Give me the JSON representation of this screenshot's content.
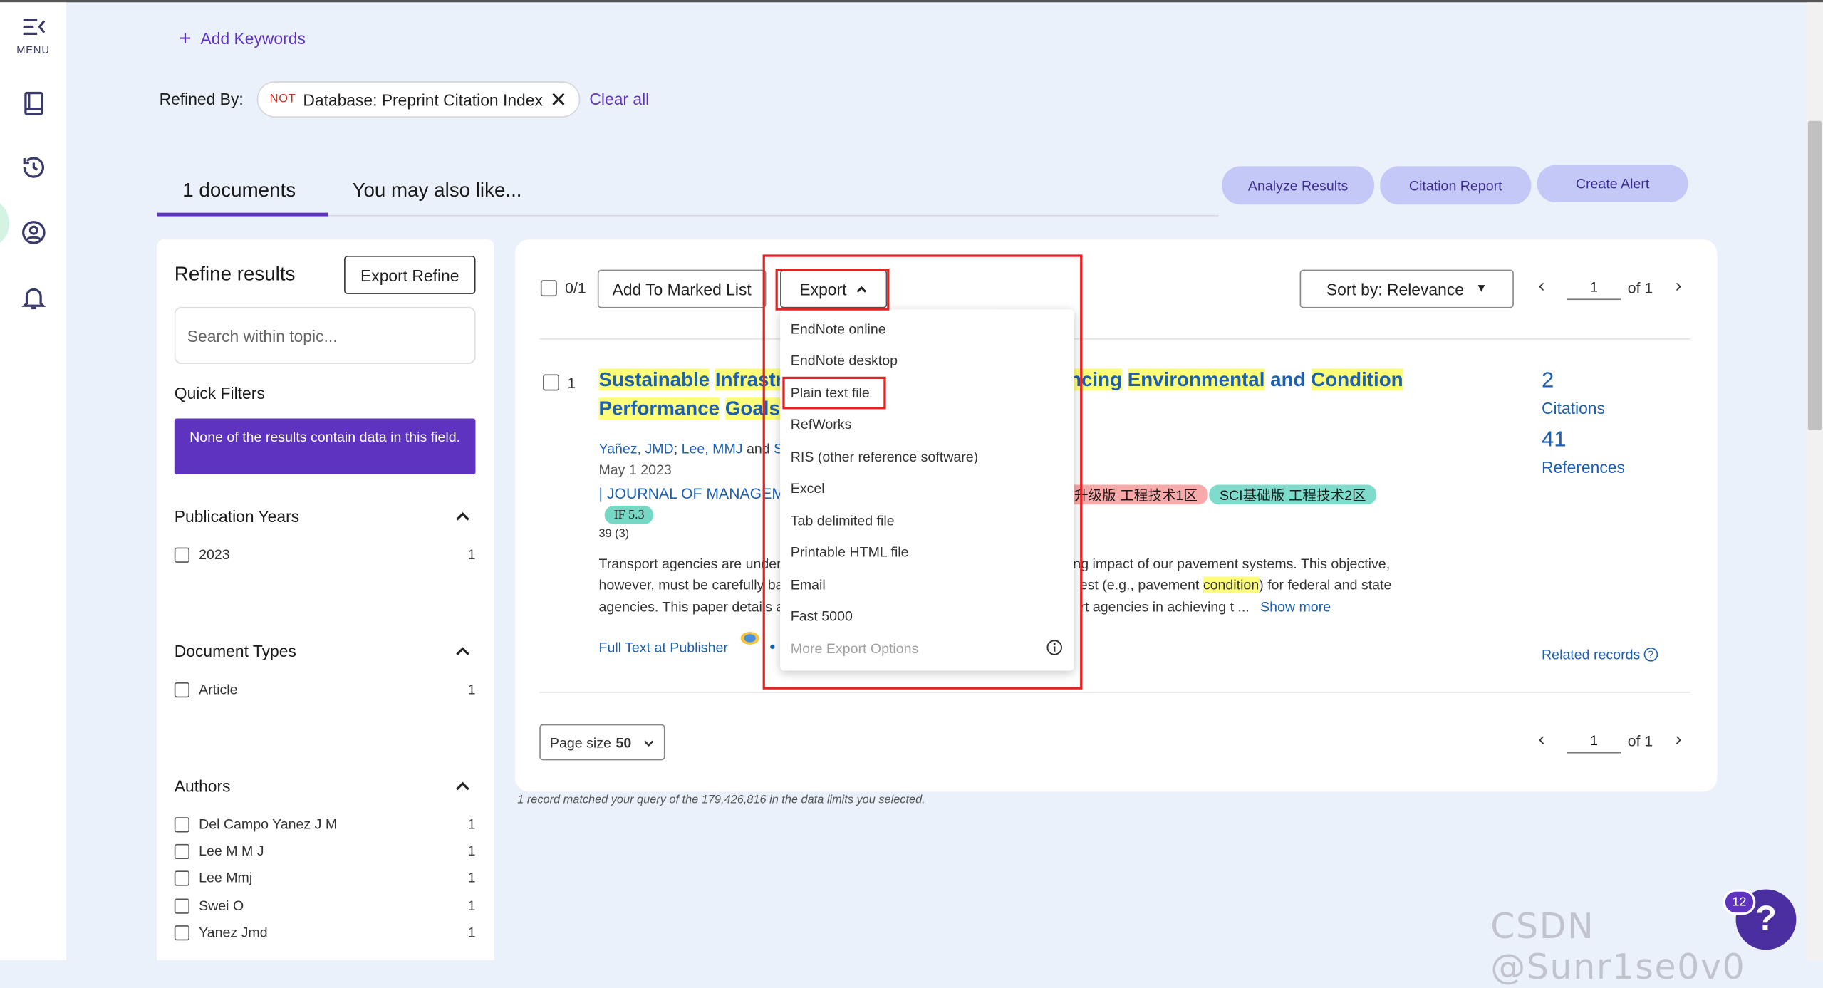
{
  "rail": {
    "menu_label": "MENU"
  },
  "search": {
    "add_keywords": "Add Keywords",
    "refined_by_label": "Refined By:",
    "chip_not": "NOT",
    "chip_text": "Database: Preprint Citation Index",
    "clear_all": "Clear all"
  },
  "tabs": {
    "count": "1",
    "documents_label": "documents",
    "also_like": "You may also like..."
  },
  "actions": {
    "analyze": "Analyze Results",
    "citation_report": "Citation Report",
    "create_alert": "Create Alert"
  },
  "refine": {
    "title": "Refine results",
    "export_refine": "Export Refine",
    "search_placeholder": "Search within topic...",
    "quick_filters": "Quick Filters",
    "quick_filters_msg": "None of the results contain data in this field.",
    "pub_years": "Publication Years",
    "year_2023": "2023",
    "year_2023_count": "1",
    "doc_types": "Document Types",
    "article": "Article",
    "article_count": "1",
    "authors_title": "Authors",
    "authors": [
      {
        "name": "Del Campo Yanez J M",
        "count": "1"
      },
      {
        "name": "Lee M M J",
        "count": "1"
      },
      {
        "name": "Lee Mmj",
        "count": "1"
      },
      {
        "name": "Swei O",
        "count": "1"
      },
      {
        "name": "Yanez Jmd",
        "count": "1"
      }
    ]
  },
  "toolbar": {
    "selected": "0/1",
    "add_marked": "Add To Marked List",
    "export": "Export",
    "sort": "Sort by: Relevance",
    "page": "1",
    "of": "of 1"
  },
  "export_menu": {
    "items": [
      "EndNote online",
      "EndNote desktop",
      "Plain text file",
      "RefWorks",
      "RIS (other reference software)",
      "Excel",
      "Tab delimited file",
      "Printable HTML file",
      "Email",
      "Fast 5000",
      "More Export Options"
    ]
  },
  "result": {
    "number": "1",
    "title_parts": [
      "Sustainable",
      " ",
      "Infrastr",
      "ncing",
      " ",
      "Environmental",
      " and ",
      "Condition",
      "Performance",
      " ",
      "Goals"
    ],
    "authors_a": "Yañez, JMD",
    "authors_sep": "; ",
    "authors_b": "Lee, MMJ",
    "authors_and": " and ",
    "authors_c": "Sw",
    "date": "May 1 2023",
    "journal": "| JOURNAL OF MANAGEM",
    "if_badge": "IF 5.3",
    "tag1": "升级版 工程技术1区",
    "tag2": "SCI基础版 工程技术2区",
    "small": "39 (3)",
    "abstract_l1a": "Transport agencies are under",
    "abstract_l1b": "ng impact of our pavement systems. This objective,",
    "abstract_l2a": "however, must be carefully ba",
    "abstract_l2b": "est (e.g., pavement ",
    "abstract_l2hl": "condition",
    "abstract_l2c": ") for federal and state",
    "abstract_l3a": "agencies. This paper details a",
    "abstract_l3b": "rt agencies in achieving t ...",
    "show_more": "Show more",
    "full_text": "Full Text at Publisher",
    "citations_num": "2",
    "citations_lbl": "Citations",
    "refs_num": "41",
    "refs_lbl": "References",
    "related": "Related records"
  },
  "footer": {
    "page_size_label": "Page size",
    "page_size_value": "50",
    "page": "1",
    "of": "of 1",
    "note": "1 record matched your query of the 179,426,816 in the data limits you selected."
  },
  "overlay": {
    "watermark": "CSDN @Sunr1se0v0",
    "help_badge": "12",
    "help_glyph": "?"
  },
  "colors": {
    "accent": "#5e33bf",
    "link": "#1d5fb0",
    "highlight": "#fdfd7a",
    "annotation": "#e82020"
  }
}
